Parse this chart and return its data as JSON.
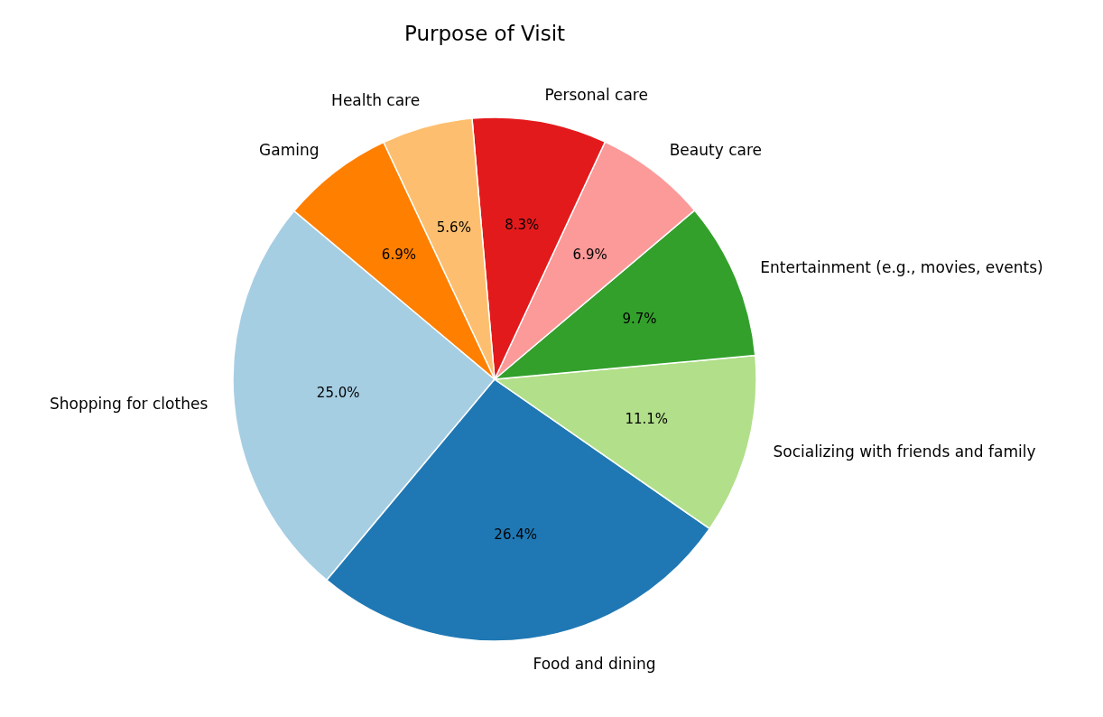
{
  "chart_data": {
    "type": "pie",
    "title": "Purpose of Visit",
    "categories": [
      "Shopping for clothes",
      "Food and dining",
      "Socializing with friends and family",
      "Entertainment (e.g., movies, events)",
      "Beauty care",
      "Personal care",
      "Health care",
      "Gaming"
    ],
    "values": [
      25.0,
      26.4,
      11.1,
      9.7,
      6.9,
      8.3,
      5.6,
      6.9
    ],
    "value_labels": [
      "25.0%",
      "26.4%",
      "11.1%",
      "9.7%",
      "6.9%",
      "8.3%",
      "5.6%",
      "6.9%"
    ],
    "colors": [
      "#a6cee3",
      "#1f78b4",
      "#b2df8a",
      "#33a02c",
      "#fb9a99",
      "#e31a1c",
      "#fdbf6f",
      "#ff7f00"
    ]
  }
}
